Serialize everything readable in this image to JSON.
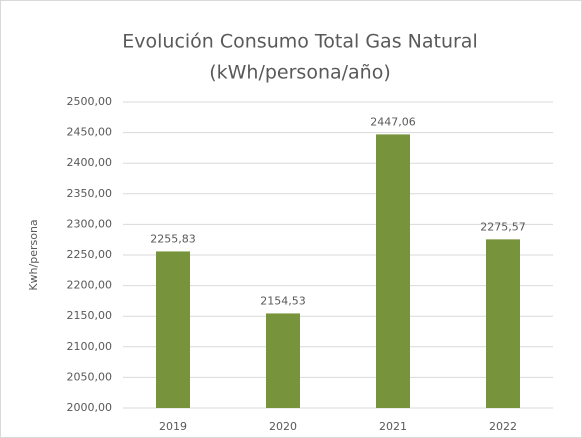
{
  "chart_data": {
    "type": "bar",
    "title": "Evolución Consumo Total Gas Natural",
    "subtitle": "(kWh/persona/año)",
    "y_label": "Kwh/persona",
    "categories": [
      "2019",
      "2020",
      "2021",
      "2022"
    ],
    "values": [
      2255.83,
      2154.53,
      2447.06,
      2275.57
    ],
    "value_labels": [
      "2255,83",
      "2154,53",
      "2447,06",
      "2275,57"
    ],
    "color": "#77933c",
    "ylim": [
      2000,
      2500
    ],
    "yticks": [
      {
        "value": 2000,
        "label": "2000,00"
      },
      {
        "value": 2050,
        "label": "2050,00"
      },
      {
        "value": 2100,
        "label": "2100,00"
      },
      {
        "value": 2150,
        "label": "2150,00"
      },
      {
        "value": 2200,
        "label": "2200,00"
      },
      {
        "value": 2250,
        "label": "2250,00"
      },
      {
        "value": 2300,
        "label": "2300,00"
      },
      {
        "value": 2350,
        "label": "2350,00"
      },
      {
        "value": 2400,
        "label": "2400,00"
      },
      {
        "value": 2450,
        "label": "2450,00"
      },
      {
        "value": 2500,
        "label": "2500,00"
      }
    ],
    "grid": true
  }
}
